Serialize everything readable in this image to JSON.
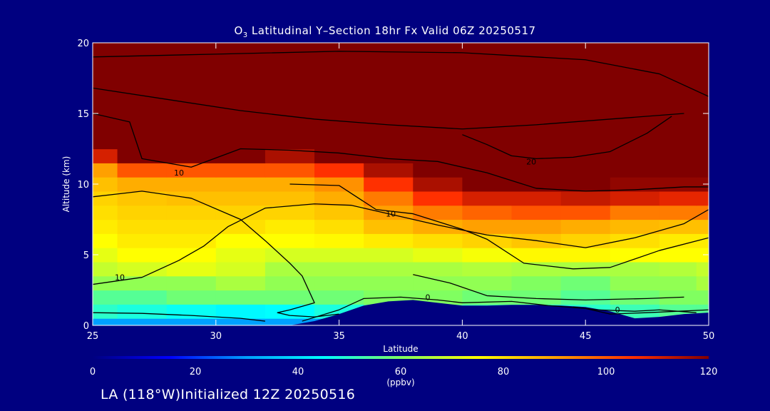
{
  "title": {
    "species": "O",
    "species_sub": "3",
    "text": " Latitudinal Y–Section 18hr  Fx Valid 06Z 20250517"
  },
  "footer": "LA (118°W)Initialized 12Z 20250516",
  "chart_data": {
    "type": "contour",
    "xlabel": "Latitude",
    "ylabel": "Altitude (km)",
    "xlim": [
      25,
      50
    ],
    "ylim": [
      0,
      20
    ],
    "xticks": [
      "25",
      "30",
      "35",
      "40",
      "45",
      "50"
    ],
    "yticks": [
      "0",
      "5",
      "10",
      "15",
      "20"
    ],
    "colorbar": {
      "label": "(ppbv)",
      "range": [
        0,
        120
      ],
      "ticks": [
        "0",
        "20",
        "40",
        "60",
        "80",
        "100",
        "120"
      ],
      "colors": [
        "#000080",
        "#0000ff",
        "#00a0ff",
        "#00ffff",
        "#80ff60",
        "#ffff00",
        "#ffa000",
        "#ff3000",
        "#800000"
      ]
    },
    "background_color": "#000080",
    "terrain_color": "#000080",
    "concentration_grid": {
      "lats": [
        25,
        27,
        29,
        31,
        33,
        35,
        37,
        39,
        41,
        43,
        45,
        47,
        49,
        50
      ],
      "alts": [
        0,
        1,
        2,
        3,
        4,
        5,
        6,
        7,
        8,
        9,
        10,
        11,
        12,
        13,
        15,
        20
      ],
      "values": [
        [
          30,
          30,
          30,
          30,
          30,
          30,
          30,
          30,
          30,
          30,
          30,
          30,
          30,
          30
        ],
        [
          50,
          48,
          46,
          44,
          45,
          48,
          55,
          55,
          52,
          50,
          50,
          52,
          55,
          55
        ],
        [
          55,
          55,
          58,
          58,
          58,
          58,
          60,
          60,
          58,
          58,
          55,
          58,
          60,
          60
        ],
        [
          62,
          62,
          62,
          65,
          62,
          62,
          62,
          62,
          62,
          60,
          58,
          62,
          62,
          65
        ],
        [
          68,
          70,
          72,
          70,
          65,
          65,
          65,
          65,
          66,
          65,
          65,
          65,
          66,
          68
        ],
        [
          72,
          75,
          75,
          72,
          70,
          70,
          70,
          72,
          74,
          76,
          76,
          75,
          75,
          75
        ],
        [
          75,
          78,
          78,
          75,
          75,
          76,
          78,
          80,
          82,
          84,
          82,
          80,
          78,
          78
        ],
        [
          78,
          80,
          80,
          80,
          78,
          80,
          85,
          88,
          90,
          90,
          88,
          86,
          85,
          85
        ],
        [
          80,
          82,
          82,
          82,
          82,
          84,
          90,
          95,
          98,
          100,
          100,
          95,
          95,
          95
        ],
        [
          82,
          84,
          85,
          85,
          85,
          88,
          95,
          105,
          110,
          110,
          112,
          110,
          108,
          108
        ],
        [
          85,
          88,
          88,
          88,
          88,
          92,
          105,
          115,
          120,
          120,
          120,
          118,
          118,
          118
        ],
        [
          90,
          100,
          100,
          100,
          100,
          105,
          115,
          120,
          120,
          120,
          120,
          120,
          120,
          120
        ],
        [
          110,
          120,
          120,
          120,
          115,
          120,
          120,
          120,
          120,
          120,
          120,
          120,
          120,
          120
        ],
        [
          120,
          120,
          120,
          120,
          120,
          120,
          120,
          120,
          120,
          120,
          120,
          120,
          120,
          120
        ],
        [
          120,
          120,
          120,
          120,
          120,
          120,
          120,
          120,
          120,
          120,
          120,
          120,
          120,
          120
        ],
        [
          120,
          120,
          120,
          120,
          120,
          120,
          120,
          120,
          120,
          120,
          120,
          120,
          120,
          120
        ]
      ]
    },
    "terrain": {
      "lats": [
        25,
        32,
        33,
        34,
        35,
        36,
        37,
        38,
        39,
        40,
        41,
        42,
        43,
        44,
        45,
        46,
        47,
        48,
        49,
        50
      ],
      "alts": [
        0,
        0,
        0,
        0.3,
        0.8,
        1.4,
        1.7,
        1.8,
        1.6,
        1.4,
        1.4,
        1.45,
        1.45,
        1.4,
        1.3,
        1.0,
        0.5,
        0.6,
        0.8,
        0.9
      ]
    },
    "contour_lines": [
      {
        "label": "10",
        "label_at": [
          28.5,
          10.8
        ],
        "points": [
          [
            25,
            15
          ],
          [
            26.5,
            14.4
          ],
          [
            27,
            11.8
          ],
          [
            29,
            11.2
          ],
          [
            31,
            12.5
          ],
          [
            33,
            12.4
          ],
          [
            35,
            12.2
          ],
          [
            37,
            11.8
          ],
          [
            39,
            11.6
          ],
          [
            41,
            10.8
          ],
          [
            43,
            9.7
          ],
          [
            45,
            9.5
          ],
          [
            47,
            9.6
          ],
          [
            49,
            9.8
          ],
          [
            50,
            9.8
          ]
        ]
      },
      {
        "label": "10",
        "label_at": [
          26.1,
          3.4
        ],
        "points": [
          [
            25,
            2.9
          ],
          [
            27,
            3.4
          ],
          [
            28.5,
            4.6
          ],
          [
            29.5,
            5.6
          ],
          [
            30.5,
            7.0
          ],
          [
            32,
            8.3
          ],
          [
            34,
            8.6
          ],
          [
            35.5,
            8.5
          ],
          [
            37.5,
            7.7
          ],
          [
            39,
            7.1
          ],
          [
            41,
            6.4
          ],
          [
            43,
            6.0
          ],
          [
            45,
            5.5
          ],
          [
            47,
            6.2
          ],
          [
            49,
            7.2
          ],
          [
            50,
            8.2
          ]
        ]
      },
      {
        "label": "10",
        "label_at": [
          37.1,
          7.9
        ],
        "points": [
          [
            33,
            10.0
          ],
          [
            35,
            9.9
          ],
          [
            36.5,
            8.2
          ],
          [
            38,
            7.9
          ],
          [
            40,
            6.8
          ],
          [
            41,
            6.1
          ],
          [
            42.5,
            4.4
          ],
          [
            44.5,
            4.0
          ],
          [
            46,
            4.1
          ],
          [
            48,
            5.3
          ],
          [
            50,
            6.2
          ]
        ]
      },
      {
        "label": "0",
        "label_at": [
          38.6,
          2.0
        ],
        "points": [
          [
            33.5,
            0.3
          ],
          [
            35,
            1.1
          ],
          [
            36,
            1.9
          ],
          [
            37.5,
            2.0
          ],
          [
            39,
            1.8
          ],
          [
            40,
            1.6
          ],
          [
            42,
            1.7
          ],
          [
            43.5,
            1.4
          ],
          [
            45,
            1.2
          ],
          [
            46,
            0.8
          ],
          [
            47.5,
            0.9
          ],
          [
            50,
            1.1
          ]
        ]
      },
      {
        "label": "0",
        "label_at": [
          46.3,
          1.1
        ],
        "points": [
          [
            44.5,
            1.3
          ],
          [
            45.5,
            1.1
          ],
          [
            47,
            1.0
          ],
          [
            48,
            1.1
          ],
          [
            49.5,
            0.9
          ]
        ]
      },
      {
        "label": "20",
        "label_at": [
          42.8,
          11.6
        ],
        "points": [
          [
            40,
            13.5
          ],
          [
            41,
            12.8
          ],
          [
            42,
            12.0
          ],
          [
            43,
            11.8
          ],
          [
            44.5,
            11.9
          ],
          [
            46,
            12.3
          ],
          [
            47.5,
            13.6
          ],
          [
            48.5,
            14.8
          ]
        ]
      },
      {
        "label": "",
        "label_at": null,
        "points": [
          [
            25,
            0.9
          ],
          [
            27,
            0.85
          ],
          [
            29,
            0.7
          ],
          [
            31,
            0.5
          ],
          [
            32,
            0.3
          ]
        ]
      },
      {
        "label": "",
        "label_at": null,
        "points": [
          [
            25,
            19.0
          ],
          [
            30,
            19.2
          ],
          [
            35,
            19.4
          ],
          [
            40,
            19.3
          ],
          [
            45,
            18.8
          ],
          [
            48,
            17.8
          ],
          [
            50,
            16.2
          ]
        ]
      },
      {
        "label": "",
        "label_at": null,
        "points": [
          [
            25,
            16.8
          ],
          [
            28,
            16.0
          ],
          [
            31,
            15.2
          ],
          [
            34,
            14.6
          ],
          [
            37,
            14.2
          ],
          [
            40,
            13.9
          ],
          [
            43,
            14.2
          ],
          [
            46,
            14.6
          ],
          [
            49,
            15.0
          ]
        ]
      },
      {
        "label": "",
        "label_at": null,
        "points": [
          [
            25,
            9.1
          ],
          [
            26,
            9.3
          ],
          [
            27,
            9.5
          ],
          [
            29,
            9.0
          ],
          [
            31,
            7.5
          ],
          [
            32,
            6.0
          ],
          [
            33,
            4.4
          ],
          [
            33.5,
            3.5
          ],
          [
            34,
            1.6
          ],
          [
            33,
            1.1
          ],
          [
            32.5,
            0.9
          ],
          [
            33,
            0.7
          ],
          [
            34,
            0.6
          ],
          [
            35,
            0.8
          ]
        ]
      },
      {
        "label": "",
        "label_at": null,
        "points": [
          [
            38,
            3.6
          ],
          [
            39.5,
            3.0
          ],
          [
            41,
            2.1
          ],
          [
            43,
            1.9
          ],
          [
            45,
            1.8
          ],
          [
            47.5,
            1.9
          ],
          [
            49,
            2.0
          ]
        ]
      }
    ]
  }
}
